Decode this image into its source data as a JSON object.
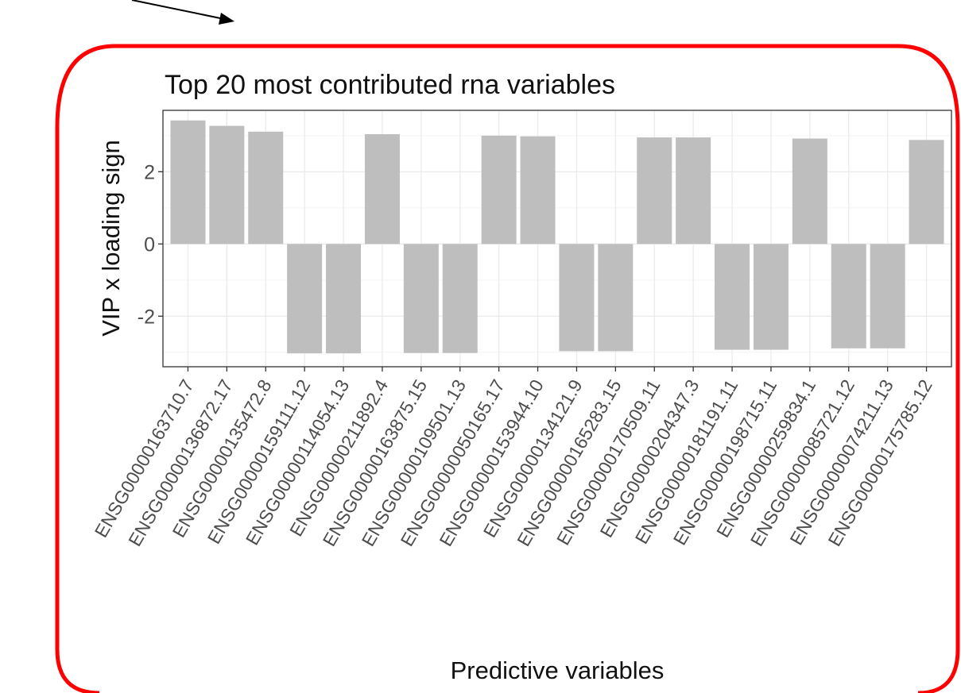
{
  "chart_data": {
    "type": "bar",
    "title": "Top 20 most contributed rna variables",
    "xlabel": "Predictive variables",
    "ylabel": "VIP x loading sign",
    "ylim": [
      -3.4,
      3.7
    ],
    "yticks": [
      -2,
      0,
      2
    ],
    "grid": true,
    "legend": "none",
    "categories": [
      "ENSG00000163710.7",
      "ENSG00000136872.17",
      "ENSG00000135472.8",
      "ENSG00000159111.12",
      "ENSG00000114054.13",
      "ENSG00000211892.4",
      "ENSG00000163875.15",
      "ENSG00000109501.13",
      "ENSG00000050165.17",
      "ENSG00000153944.10",
      "ENSG00000134121.9",
      "ENSG00000165283.15",
      "ENSG00000170509.11",
      "ENSG00000204347.3",
      "ENSG00000181191.11",
      "ENSG00000198715.11",
      "ENSG00000259834.1",
      "ENSG00000085721.12",
      "ENSG00000074211.13",
      "ENSG00000175785.12"
    ],
    "values": [
      3.42,
      3.27,
      3.11,
      -3.03,
      -3.03,
      3.04,
      -3.02,
      -3.02,
      3.0,
      2.98,
      -2.97,
      -2.97,
      2.95,
      2.95,
      -2.93,
      -2.93,
      2.92,
      -2.89,
      -2.89,
      2.88
    ]
  },
  "colors": {
    "bar": "#bebebe",
    "grid": "#ebebeb",
    "frame": "#333333",
    "highlight_border": "#ff0000",
    "arrow": "#000000"
  },
  "annotations": {
    "highlight": "rounded-rectangle",
    "arrow": "pointer-arrow"
  }
}
